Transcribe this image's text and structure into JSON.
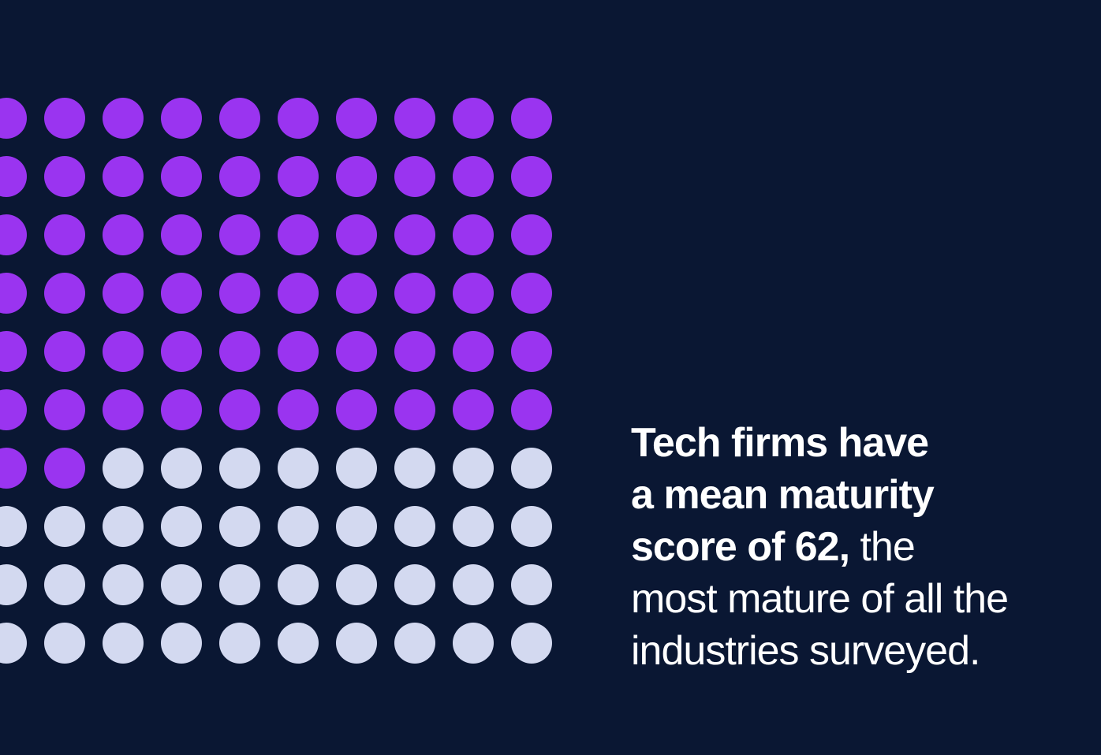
{
  "page": {
    "background_color": "#0A1733"
  },
  "chart_data": {
    "type": "waffle",
    "rows": 10,
    "columns": 10,
    "total_units": 100,
    "filled_units": 62,
    "empty_units": 38,
    "fill_direction": "row-major, top-to-bottom, left-to-right",
    "fill_color": "#9A34F0",
    "empty_color": "#D3D9F0",
    "represents": "Mean maturity score of tech firms: 62 out of 100",
    "annotation": "Tech firms have a mean maturity score of 62, the most mature of all the industries surveyed."
  },
  "callout": {
    "text_color": "#FFFFFF",
    "full_text": "Tech firms have a mean maturity score of 62, the most mature of all the industries surveyed.",
    "lines": [
      {
        "bold": "Tech firms have",
        "regular": ""
      },
      {
        "bold": "a mean maturity",
        "regular": ""
      },
      {
        "bold": "score of 62,",
        "regular": " the"
      },
      {
        "bold": "",
        "regular": "most mature of all the"
      },
      {
        "bold": "",
        "regular": "industries surveyed."
      }
    ]
  }
}
